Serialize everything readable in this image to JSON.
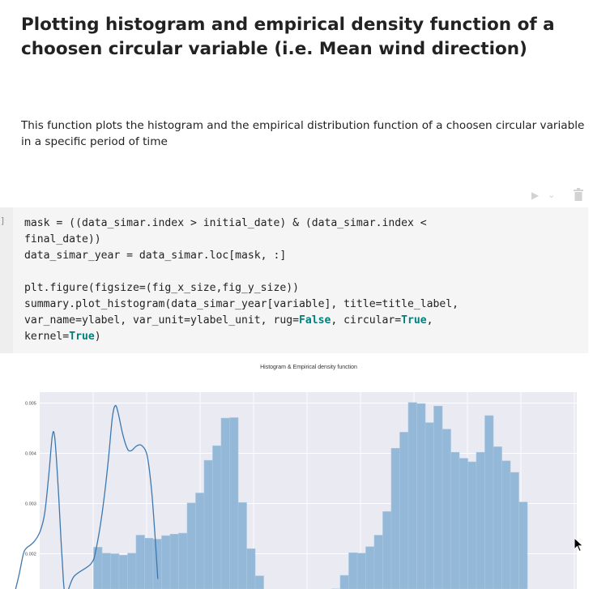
{
  "markdown": {
    "heading": "Plotting histogram and empirical density function of a choosen circular variable (i.e. Mean wind direction)",
    "description": "This function plots the histogram and the empirical distribution function of a choosen circular variable in a specific period of time"
  },
  "toolbar": {
    "run_icon": "run-icon",
    "chevron_icon": "chevron-down-icon",
    "delete_icon": "trash-icon"
  },
  "cell": {
    "prompt": "]",
    "code": {
      "line1": "mask = ((data_simar.index > initial_date) & (data_simar.index <",
      "line2": "final_date))",
      "line3": "data_simar_year = data_simar.loc[mask, :]",
      "line5": "plt.figure(figsize=(fig_x_size,fig_y_size))",
      "line6": "summary.plot_histogram(data_simar_year[variable], title=title_label,",
      "line7a": "var_name=ylabel, var_unit=ylabel_unit, rug=",
      "kw_false": "False",
      "line7b": ", circular=",
      "kw_true1": "True",
      "line7c": ",",
      "line8a": "kernel=",
      "kw_true2": "True",
      "line8b": ")"
    }
  },
  "colors": {
    "plot_bg": "#eaeaf2",
    "bar_fill": "#94b8d7",
    "bar_edge": "#a9c7e1",
    "kde_line": "#3c78b0",
    "keyword": "#00807d"
  },
  "chart_data": {
    "type": "bar",
    "title": "Histogram & Empirical density function",
    "y_ticks": [
      "0.005",
      "0.004",
      "0.003",
      "0.002"
    ],
    "y_tick_values": [
      0.005,
      0.004,
      0.003,
      0.002
    ],
    "ylim_visible": [
      0.00155,
      0.00518
    ],
    "grid": true,
    "bins": 60,
    "values": [
      0,
      0,
      0,
      0,
      0,
      0,
      0,
      0,
      0,
      0.00213,
      0.00201,
      0.002,
      0.00197,
      0.00201,
      0.00237,
      0.00231,
      0.00229,
      0.00236,
      0.00239,
      0.00241,
      0.00301,
      0.00321,
      0.00386,
      0.00415,
      0.0047,
      0.00471,
      0.00302,
      0.0021,
      0.00156,
      0,
      0,
      0,
      0,
      0,
      0,
      0,
      0,
      0.0013,
      0.00157,
      0.00202,
      0.00201,
      0.00214,
      0.00237,
      0.00284,
      0.0041,
      0.00442,
      0.00501,
      0.00499,
      0.00461,
      0.00494,
      0.00448,
      0.00402,
      0.0039,
      0.00383,
      0.00402,
      0.00475,
      0.00413,
      0.00385,
      0.00362,
      0.00303
    ],
    "kde": [
      [
        0.001,
        -0.6
      ],
      [
        0.00155,
        0.2
      ],
      [
        0.002,
        0.75
      ],
      [
        0.00212,
        1.15
      ],
      [
        0.00217,
        1.55
      ],
      [
        0.00226,
        2.1
      ],
      [
        0.00244,
        2.7
      ],
      [
        0.0028,
        3.25
      ],
      [
        0.0036,
        3.75
      ],
      [
        0.00435,
        4.15
      ],
      [
        0.0043,
        4.45
      ],
      [
        0.0033,
        4.85
      ],
      [
        0.0019,
        5.3
      ],
      [
        0.0012,
        5.7
      ],
      [
        0.00155,
        6.7
      ],
      [
        0.0018,
        8.7
      ],
      [
        0.0021,
        9.3
      ],
      [
        0.0028,
        10.0
      ],
      [
        0.0038,
        10.7
      ],
      [
        0.0047,
        11.2
      ],
      [
        0.00495,
        11.55
      ],
      [
        0.0048,
        11.9
      ],
      [
        0.0044,
        12.4
      ],
      [
        0.0041,
        12.95
      ],
      [
        0.00405,
        13.4
      ],
      [
        0.00415,
        14.1
      ],
      [
        0.00415,
        14.7
      ],
      [
        0.00395,
        15.3
      ],
      [
        0.0033,
        15.8
      ],
      [
        0.0023,
        16.25
      ],
      [
        0.0015,
        16.55
      ]
    ]
  }
}
